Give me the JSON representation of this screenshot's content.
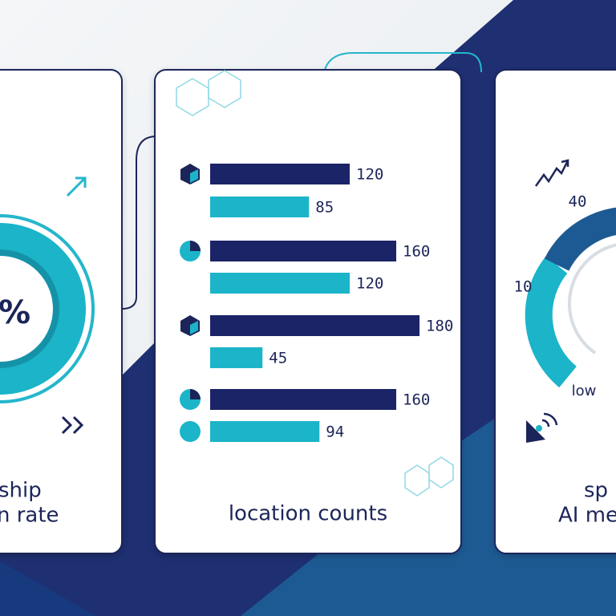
{
  "left_card": {
    "value_fragment": "%",
    "caption": [
      "ship",
      "n rate"
    ]
  },
  "chart_data": {
    "type": "bar",
    "orientation": "horizontal",
    "title": "location counts",
    "categories": [
      null,
      null,
      null,
      null
    ],
    "series": [
      {
        "color": "#1b2466",
        "values": [
          120,
          160,
          180,
          160
        ]
      },
      {
        "color": "#1bb4c9",
        "values": [
          85,
          120,
          45,
          94
        ]
      }
    ],
    "xlim": [
      0,
      200
    ]
  },
  "right_card": {
    "gauge_labels": [
      40,
      10
    ],
    "level": "low",
    "caption": [
      "sp",
      "AI me"
    ]
  }
}
